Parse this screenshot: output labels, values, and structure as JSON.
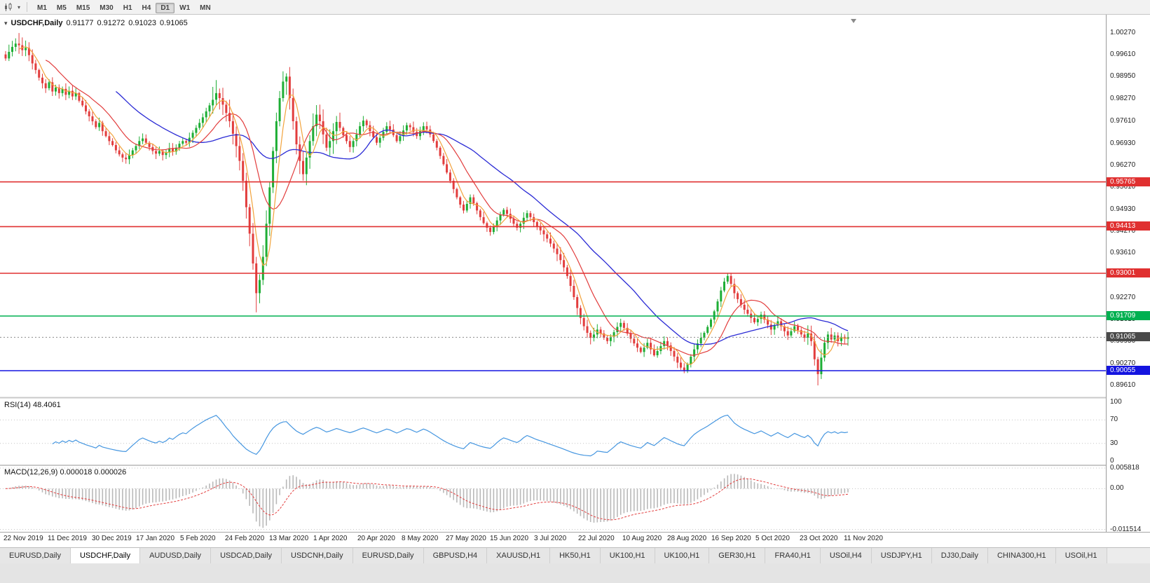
{
  "toolbar": {
    "timeframes": [
      "M1",
      "M5",
      "M15",
      "M30",
      "H1",
      "H4",
      "D1",
      "W1",
      "MN"
    ],
    "active": "D1"
  },
  "chart_header": {
    "symbol": "USDCHF,Daily",
    "open": "0.91177",
    "high": "0.91272",
    "low": "0.91023",
    "close": "0.91065"
  },
  "indicators": {
    "rsi_header": "RSI(14) 48.4061",
    "macd_header": "MACD(12,26,9) 0.000018 0.000026"
  },
  "axes": {
    "price_labels": [
      "1.00270",
      "0.99610",
      "0.98950",
      "0.98270",
      "0.97610",
      "0.96930",
      "0.96270",
      "0.95610",
      "0.94930",
      "0.94270",
      "0.93610",
      "0.92930",
      "0.92270",
      "0.91610",
      "0.90950",
      "0.90270",
      "0.89610"
    ],
    "rsi_labels": [
      "100",
      "70",
      "30",
      "0"
    ],
    "macd_labels": [
      {
        "text": "0.005818",
        "value": 0.005818
      },
      {
        "text": "0.00",
        "value": 0
      },
      {
        "text": "-0.011514",
        "value": -0.011514
      }
    ],
    "date_labels": [
      "22 Nov 2019",
      "11 Dec 2019",
      "30 Dec 2019",
      "17 Jan 2020",
      "5 Feb 2020",
      "24 Feb 2020",
      "13 Mar 2020",
      "1 Apr 2020",
      "20 Apr 2020",
      "8 May 2020",
      "27 May 2020",
      "15 Jun 2020",
      "3 Jul 2020",
      "22 Jul 2020",
      "10 Aug 2020",
      "28 Aug 2020",
      "16 Sep 2020",
      "5 Oct 2020",
      "23 Oct 2020",
      "11 Nov 2020"
    ]
  },
  "levels": {
    "hlines": [
      {
        "value": 0.95765,
        "label": "0.95765",
        "color": "#e03030"
      },
      {
        "value": 0.94413,
        "label": "0.94413",
        "color": "#e03030"
      },
      {
        "value": 0.93001,
        "label": "0.93001",
        "color": "#e03030"
      },
      {
        "value": 0.91709,
        "label": "0.91709",
        "color": "#00b050"
      },
      {
        "value": 0.90055,
        "label": "0.90055",
        "color": "#1414e0"
      }
    ],
    "current_price": {
      "value": 0.91065,
      "label": "0.91065",
      "color": "#4a4a4a"
    }
  },
  "chart_data": {
    "type": "candlestick",
    "symbol": "USDCHF",
    "timeframe": "Daily",
    "x_range": [
      "22 Nov 2019",
      "18 Nov 2020"
    ],
    "main_price_range": [
      0.8925,
      1.0078
    ],
    "macd_range": [
      -0.0122,
      0.0064
    ],
    "rsi_period": 14,
    "macd_params": [
      12,
      26,
      9
    ],
    "ma_periods": {
      "fast": 5,
      "mid": 13,
      "slow": 34
    },
    "closes": [
      0.995,
      0.997,
      0.9985,
      0.9995,
      0.999,
      0.9975,
      0.9982,
      0.996,
      0.9935,
      0.9915,
      0.9892,
      0.9875,
      0.986,
      0.9878,
      0.985,
      0.9862,
      0.9845,
      0.9858,
      0.984,
      0.9852,
      0.9835,
      0.9845,
      0.9822,
      0.9808,
      0.979,
      0.9775,
      0.976,
      0.9742,
      0.9755,
      0.973,
      0.9715,
      0.97,
      0.9688,
      0.9672,
      0.966,
      0.965,
      0.9645,
      0.9658,
      0.9672,
      0.9685,
      0.97,
      0.9708,
      0.9695,
      0.9682,
      0.967,
      0.9662,
      0.967,
      0.9658,
      0.9665,
      0.9678,
      0.9668,
      0.968,
      0.9692,
      0.97,
      0.9695,
      0.971,
      0.9725,
      0.974,
      0.9755,
      0.9772,
      0.979,
      0.9808,
      0.9825,
      0.9845,
      0.983,
      0.981,
      0.9785,
      0.976,
      0.9722,
      0.9685,
      0.964,
      0.958,
      0.95,
      0.942,
      0.933,
      0.924,
      0.928,
      0.935,
      0.945,
      0.956,
      0.967,
      0.976,
      0.983,
      0.988,
      0.9895,
      0.983,
      0.976,
      0.969,
      0.964,
      0.96,
      0.965,
      0.97,
      0.9745,
      0.978,
      0.976,
      0.972,
      0.968,
      0.97,
      0.973,
      0.9758,
      0.974,
      0.9718,
      0.97,
      0.9682,
      0.97,
      0.972,
      0.9745,
      0.9762,
      0.9748,
      0.973,
      0.9712,
      0.9695,
      0.971,
      0.9728,
      0.9745,
      0.9735,
      0.9718,
      0.97,
      0.9715,
      0.9732,
      0.9748,
      0.9742,
      0.9728,
      0.9715,
      0.973,
      0.9745,
      0.9735,
      0.972,
      0.97,
      0.968,
      0.9655,
      0.963,
      0.9605,
      0.958,
      0.9555,
      0.953,
      0.9508,
      0.949,
      0.951,
      0.953,
      0.9512,
      0.949,
      0.947,
      0.9452,
      0.9438,
      0.9425,
      0.944,
      0.946,
      0.9478,
      0.9492,
      0.948,
      0.9465,
      0.945,
      0.9438,
      0.945,
      0.9468,
      0.9482,
      0.947,
      0.9455,
      0.9442,
      0.943,
      0.9418,
      0.9405,
      0.939,
      0.9375,
      0.9358,
      0.934,
      0.9318,
      0.9292,
      0.9262,
      0.9228,
      0.9195,
      0.9165,
      0.914,
      0.912,
      0.9105,
      0.9115,
      0.913,
      0.9118,
      0.9105,
      0.9095,
      0.9108,
      0.9122,
      0.9138,
      0.915,
      0.9135,
      0.9118,
      0.9102,
      0.9088,
      0.9075,
      0.9062,
      0.9075,
      0.909,
      0.907,
      0.9052,
      0.9065,
      0.908,
      0.9095,
      0.9082,
      0.9065,
      0.9048,
      0.903,
      0.9015,
      0.9005,
      0.9025,
      0.9048,
      0.907,
      0.9088,
      0.9105,
      0.912,
      0.9138,
      0.916,
      0.9185,
      0.9215,
      0.9248,
      0.9275,
      0.9292,
      0.9268,
      0.924,
      0.9222,
      0.9205,
      0.919,
      0.9178,
      0.9165,
      0.9152,
      0.9162,
      0.9175,
      0.916,
      0.9145,
      0.913,
      0.9142,
      0.9155,
      0.914,
      0.9125,
      0.9112,
      0.9125,
      0.914,
      0.9128,
      0.9115,
      0.9105,
      0.9118,
      0.9095,
      0.904,
      0.8995,
      0.9045,
      0.909,
      0.9115,
      0.91,
      0.9112,
      0.9095,
      0.9108,
      0.9102,
      0.9107
    ],
    "wick_overrides": {
      "4": {
        "high": 1.0027
      },
      "75": {
        "low": 0.9182
      },
      "84": {
        "high": 0.9905
      },
      "203": {
        "low": 0.8998
      },
      "243": {
        "low": 0.8961
      }
    }
  },
  "tabs": [
    {
      "label": "EURUSD,Daily",
      "active": false
    },
    {
      "label": "USDCHF,Daily",
      "active": true
    },
    {
      "label": "AUDUSD,Daily",
      "active": false
    },
    {
      "label": "USDCAD,Daily",
      "active": false
    },
    {
      "label": "USDCNH,Daily",
      "active": false
    },
    {
      "label": "EURUSD,Daily",
      "active": false
    },
    {
      "label": "GBPUSD,H4",
      "active": false
    },
    {
      "label": "XAUUSD,H1",
      "active": false
    },
    {
      "label": "HK50,H1",
      "active": false
    },
    {
      "label": "UK100,H1",
      "active": false
    },
    {
      "label": "UK100,H1",
      "active": false
    },
    {
      "label": "GER30,H1",
      "active": false
    },
    {
      "label": "FRA40,H1",
      "active": false
    },
    {
      "label": "USOil,H4",
      "active": false
    },
    {
      "label": "USDJPY,H1",
      "active": false
    },
    {
      "label": "DJ30,Daily",
      "active": false
    },
    {
      "label": "CHINA300,H1",
      "active": false
    },
    {
      "label": "USOil,H1",
      "active": false
    }
  ],
  "colors": {
    "up": "#1eae35",
    "down": "#e23d3d",
    "ma_fast": "#f2a33c",
    "ma_mid": "#e23d3d",
    "ma_slow": "#2b2bd5",
    "rsi_line": "#4596e0",
    "macd_hist": "#b9b9b9",
    "macd_signal": "#e23d3d",
    "grid": "#c4c4c4"
  }
}
